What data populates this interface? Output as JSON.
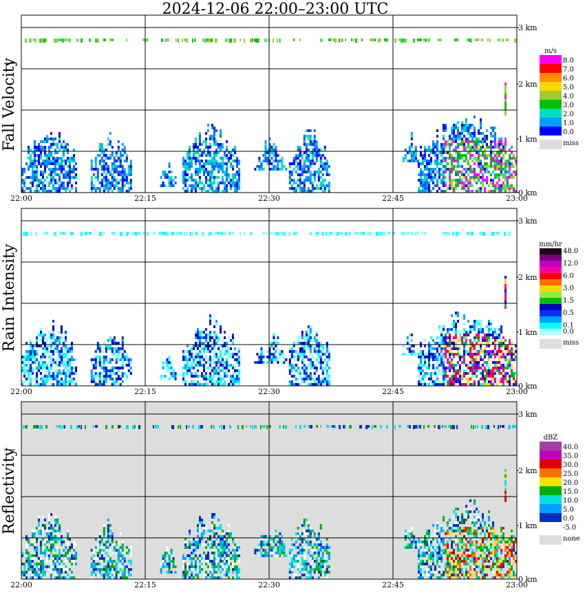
{
  "title": "2024-12-06   22:00–23:00 UTC",
  "chart_data": [
    {
      "type": "heatmap",
      "ylabel": "Fall Velocity",
      "x_ticks": [
        "22:00",
        "22:15",
        "22:30",
        "22:45",
        "23:00"
      ],
      "y_ticks": [
        "0 km",
        "1 km",
        "2 km",
        "3 km"
      ],
      "ylim_km": [
        0,
        3.2
      ],
      "grid": true,
      "background": "#ffffff",
      "legend": {
        "unit": "m/s",
        "levels": [
          {
            "label": "8.0",
            "color": "#ff00ff"
          },
          {
            "label": "7.0",
            "color": "#ff0000"
          },
          {
            "label": "6.0",
            "color": "#ff8c00"
          },
          {
            "label": "5.0",
            "color": "#ffd700"
          },
          {
            "label": "4.0",
            "color": "#9acd32"
          },
          {
            "label": "3.0",
            "color": "#00c000"
          },
          {
            "label": "2.0",
            "color": "#00e0c0"
          },
          {
            "label": "1.0",
            "color": "#00a0ff"
          },
          {
            "label": "0.0",
            "color": "#0000ff"
          }
        ],
        "miss_label": "miss",
        "miss_color": "#dddddd"
      },
      "top_band_colors": [
        "#00c000",
        "#30d030",
        "#60e060",
        "#9acd32"
      ],
      "body_colors": [
        "#0000ff",
        "#1060ff",
        "#00a0ff",
        "#00e0c0"
      ],
      "hot_colors": [
        "#00c000",
        "#9acd32",
        "#ff00ff"
      ]
    },
    {
      "type": "heatmap",
      "ylabel": "Rain Intensity",
      "x_ticks": [
        "22:00",
        "22:15",
        "22:30",
        "22:45",
        "23:00"
      ],
      "y_ticks": [
        "0 km",
        "1 km",
        "2 km",
        "3 km"
      ],
      "ylim_km": [
        0,
        3.2
      ],
      "grid": true,
      "background": "#ffffff",
      "legend": {
        "unit": "mm/hr",
        "levels": [
          {
            "label": "48.0",
            "color": "#1a001a"
          },
          {
            "label": "",
            "color": "#7a007a"
          },
          {
            "label": "12.0",
            "color": "#c000c0"
          },
          {
            "label": "",
            "color": "#ff00a0"
          },
          {
            "label": "6.0",
            "color": "#ff0000"
          },
          {
            "label": "",
            "color": "#ff7000"
          },
          {
            "label": "3.0",
            "color": "#ffd700"
          },
          {
            "label": "",
            "color": "#90ee40"
          },
          {
            "label": "1.5",
            "color": "#00c000"
          },
          {
            "label": "",
            "color": "#0000c0"
          },
          {
            "label": "0.5",
            "color": "#0030ff"
          },
          {
            "label": "",
            "color": "#00a0ff"
          },
          {
            "label": "0.1",
            "color": "#00ffff"
          },
          {
            "label": "0.0",
            "color": "#b0ffff"
          }
        ],
        "miss_label": "miss",
        "miss_color": "#dddddd"
      },
      "top_band_colors": [
        "#00ffff",
        "#40ffff",
        "#80ffff"
      ],
      "body_colors": [
        "#00ffff",
        "#80ffff",
        "#00a0ff",
        "#0030ff",
        "#0000c0"
      ],
      "hot_colors": [
        "#ff0000",
        "#ff00a0",
        "#c000c0",
        "#ffd700",
        "#00c000",
        "#0000c0"
      ]
    },
    {
      "type": "heatmap",
      "ylabel": "Reflectivity",
      "x_ticks": [
        "22:00",
        "22:15",
        "22:30",
        "22:45",
        "23:00"
      ],
      "y_ticks": [
        "0 km",
        "1 km",
        "2 km",
        "3 km"
      ],
      "ylim_km": [
        0,
        3.2
      ],
      "grid": true,
      "background": "#dddddd",
      "legend": {
        "unit": "dBZ",
        "levels": [
          {
            "label": "40.0",
            "color": "#a040a0"
          },
          {
            "label": "35.0",
            "color": "#c000c0"
          },
          {
            "label": "30.0",
            "color": "#e00000"
          },
          {
            "label": "25.0",
            "color": "#ff7000"
          },
          {
            "label": "20.0",
            "color": "#ffe000"
          },
          {
            "label": "15.0",
            "color": "#00b000"
          },
          {
            "label": "10.0",
            "color": "#00e0e0"
          },
          {
            "label": "5.0",
            "color": "#00a0ff"
          },
          {
            "label": "0.0",
            "color": "#0030c0"
          },
          {
            "label": "-5.0",
            "color": "#ffffff"
          }
        ],
        "miss_label": "none",
        "miss_color": "#dddddd"
      },
      "top_band_colors": [
        "#00b000",
        "#00e0e0",
        "#0030c0"
      ],
      "body_colors": [
        "#0030c0",
        "#00a0ff",
        "#00e0e0",
        "#00b000",
        "#ffffff"
      ],
      "hot_colors": [
        "#ffe000",
        "#ff7000",
        "#e00000",
        "#00b000",
        "#00e0e0"
      ]
    }
  ]
}
